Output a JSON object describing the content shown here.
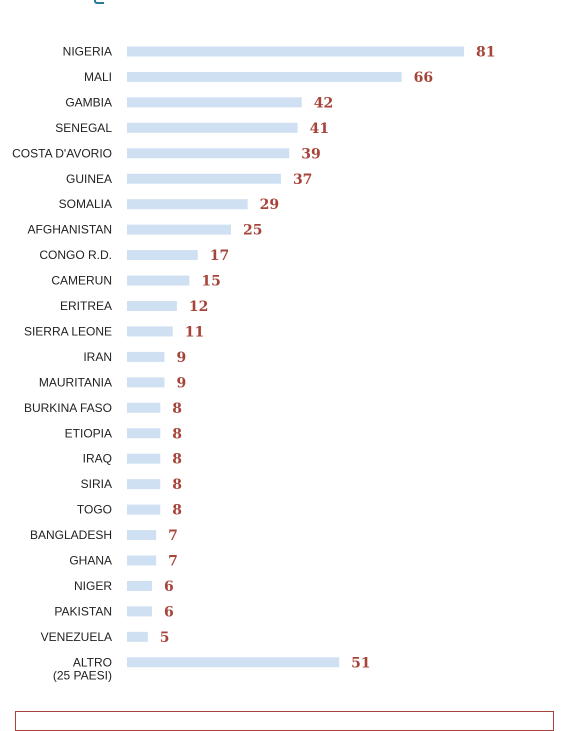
{
  "chart_data": {
    "type": "bar",
    "orientation": "horizontal",
    "categories": [
      "NIGERIA",
      "MALI",
      "GAMBIA",
      "SENEGAL",
      "COSTA D'AVORIO",
      "GUINEA",
      "SOMALIA",
      "AFGHANISTAN",
      "CONGO R.D.",
      "CAMERUN",
      "ERITREA",
      "SIERRA LEONE",
      "IRAN",
      "MAURITANIA",
      "BURKINA FASO",
      "ETIOPIA",
      "IRAQ",
      "SIRIA",
      "TOGO",
      "BANGLADESH",
      "GHANA",
      "NIGER",
      "PAKISTAN",
      "VENEZUELA",
      "ALTRO"
    ],
    "category_sublabels": {
      "ALTRO": "(25 PAESI)"
    },
    "values": [
      81,
      66,
      42,
      41,
      39,
      37,
      29,
      25,
      17,
      15,
      12,
      11,
      9,
      9,
      8,
      8,
      8,
      8,
      8,
      7,
      7,
      6,
      6,
      5,
      51
    ],
    "title": "",
    "xlabel": "",
    "ylabel": "",
    "xlim": [
      0,
      81
    ],
    "grid": false,
    "bar_color": "#cfe0f2",
    "label_color": "#a7443a"
  }
}
